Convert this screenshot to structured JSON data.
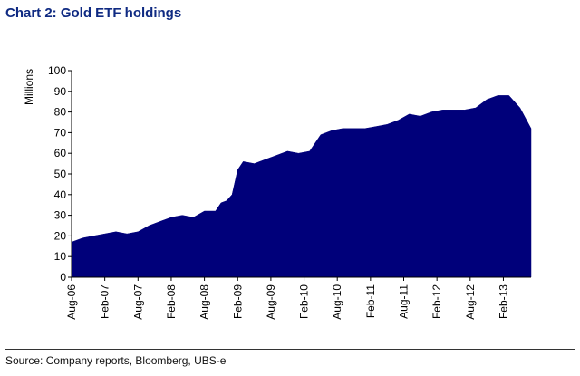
{
  "header": {
    "title": "Chart 2: Gold ETF holdings"
  },
  "footer": {
    "source": "Source: Company reports, Bloomberg, UBS-e"
  },
  "colors": {
    "area_fill": "#00007a",
    "title": "#0f2a82",
    "axis": "#000000"
  },
  "chart_data": {
    "type": "area",
    "title": "Chart 2: Gold ETF holdings",
    "ylabel": "Millions",
    "xlabel": "",
    "ylim": [
      0,
      100
    ],
    "yticks": [
      0,
      10,
      20,
      30,
      40,
      50,
      60,
      70,
      80,
      90,
      100
    ],
    "xlim": [
      "2006-08",
      "2013-07"
    ],
    "xtick_labels": [
      "Aug-06",
      "Feb-07",
      "Aug-07",
      "Feb-08",
      "Aug-08",
      "Feb-09",
      "Aug-09",
      "Feb-10",
      "Aug-10",
      "Feb-11",
      "Aug-11",
      "Feb-12",
      "Aug-12",
      "Feb-13"
    ],
    "xtick_dates": [
      "2006-08",
      "2007-02",
      "2007-08",
      "2008-02",
      "2008-08",
      "2009-02",
      "2009-08",
      "2010-02",
      "2010-08",
      "2011-02",
      "2011-08",
      "2012-02",
      "2012-08",
      "2013-02"
    ],
    "grid": false,
    "legend": "none",
    "series": [
      {
        "x": [
          "2006-08",
          "2006-10",
          "2006-12",
          "2007-02",
          "2007-04",
          "2007-06",
          "2007-08",
          "2007-10",
          "2007-12",
          "2008-02",
          "2008-04",
          "2008-06",
          "2008-08",
          "2008-10",
          "2008-11",
          "2008-12",
          "2009-01",
          "2009-02",
          "2009-03",
          "2009-05",
          "2009-07",
          "2009-09",
          "2009-11",
          "2010-01",
          "2010-03",
          "2010-05",
          "2010-07",
          "2010-09",
          "2010-11",
          "2011-01",
          "2011-03",
          "2011-05",
          "2011-07",
          "2011-09",
          "2011-11",
          "2012-01",
          "2012-03",
          "2012-05",
          "2012-07",
          "2012-09",
          "2012-11",
          "2013-01",
          "2013-03",
          "2013-05",
          "2013-07"
        ],
        "values": [
          17,
          19,
          20,
          21,
          22,
          21,
          22,
          25,
          27,
          29,
          30,
          29,
          32,
          32,
          36,
          37,
          40,
          52,
          56,
          55,
          57,
          59,
          61,
          60,
          61,
          69,
          71,
          72,
          72,
          72,
          73,
          74,
          76,
          79,
          78,
          80,
          81,
          81,
          81,
          82,
          86,
          88,
          88,
          82,
          72
        ]
      }
    ]
  }
}
